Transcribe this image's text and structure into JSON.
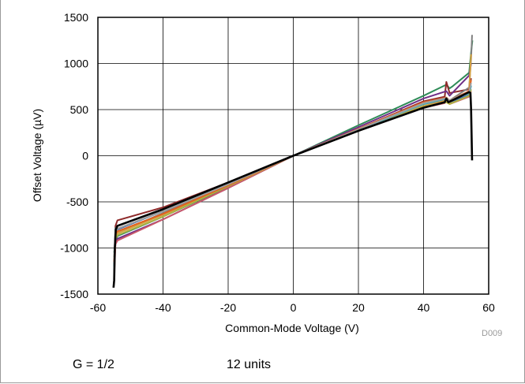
{
  "chart_data": {
    "type": "line",
    "title": "",
    "xlabel": "Common-Mode Voltage (V)",
    "ylabel": "Offset Voltage (µV)",
    "xlim": [
      -60,
      60
    ],
    "ylim": [
      -1500,
      1500
    ],
    "xticks": [
      -60,
      -40,
      -20,
      0,
      20,
      40,
      60
    ],
    "yticks": [
      -1500,
      -1000,
      -500,
      0,
      500,
      1000,
      1500
    ],
    "grid": true,
    "legend": "none",
    "series": [
      {
        "color": "#2e8b57",
        "width": 2,
        "points": [
          [
            -55,
            -1050
          ],
          [
            -54.6,
            -930
          ],
          [
            -54,
            -870
          ],
          [
            -40,
            -660
          ],
          [
            -20,
            -340
          ],
          [
            0,
            0
          ],
          [
            20,
            330
          ],
          [
            40,
            650
          ],
          [
            47,
            770
          ],
          [
            48,
            730
          ],
          [
            49,
            755
          ],
          [
            54,
            900
          ],
          [
            54.6,
            1120
          ],
          [
            55,
            1250
          ]
        ]
      },
      {
        "color": "#8e2a2a",
        "width": 2,
        "points": [
          [
            -55,
            -1180
          ],
          [
            -54.6,
            -760
          ],
          [
            -54,
            -700
          ],
          [
            -40,
            -560
          ],
          [
            -20,
            -290
          ],
          [
            0,
            0
          ],
          [
            20,
            290
          ],
          [
            40,
            590
          ],
          [
            46.5,
            640
          ],
          [
            47,
            800
          ],
          [
            48,
            680
          ],
          [
            54,
            720
          ],
          [
            54.6,
            840
          ]
        ]
      },
      {
        "color": "#6f2f86",
        "width": 2,
        "points": [
          [
            -55,
            -1200
          ],
          [
            -54.6,
            -950
          ],
          [
            -54,
            -900
          ],
          [
            -40,
            -690
          ],
          [
            -20,
            -350
          ],
          [
            0,
            0
          ],
          [
            20,
            310
          ],
          [
            40,
            620
          ],
          [
            47,
            700
          ],
          [
            48,
            650
          ],
          [
            54,
            870
          ],
          [
            54.6,
            1000
          ]
        ]
      },
      {
        "color": "#c95a6a",
        "width": 2,
        "points": [
          [
            -55,
            -1300
          ],
          [
            -54.6,
            -960
          ],
          [
            -54,
            -920
          ],
          [
            -40,
            -690
          ],
          [
            -20,
            -350
          ],
          [
            0,
            0
          ],
          [
            20,
            270
          ],
          [
            40,
            520
          ],
          [
            46.5,
            570
          ],
          [
            47,
            610
          ],
          [
            48,
            560
          ],
          [
            54,
            640
          ],
          [
            54.6,
            700
          ]
        ]
      },
      {
        "color": "#808080",
        "width": 2,
        "points": [
          [
            -55,
            -1200
          ],
          [
            -54.6,
            -880
          ],
          [
            -54,
            -840
          ],
          [
            -40,
            -620
          ],
          [
            -20,
            -320
          ],
          [
            0,
            0
          ],
          [
            20,
            290
          ],
          [
            40,
            560
          ],
          [
            47,
            620
          ],
          [
            48,
            600
          ],
          [
            54,
            740
          ],
          [
            54.6,
            1050
          ],
          [
            54.9,
            1310
          ]
        ]
      },
      {
        "color": "#3a73b8",
        "width": 2,
        "points": [
          [
            -55,
            -1250
          ],
          [
            -54.6,
            -830
          ],
          [
            -54,
            -800
          ],
          [
            -40,
            -600
          ],
          [
            -20,
            -310
          ],
          [
            0,
            0
          ],
          [
            20,
            280
          ],
          [
            40,
            560
          ],
          [
            47,
            610
          ],
          [
            48,
            580
          ],
          [
            54,
            660
          ],
          [
            54.6,
            760
          ]
        ]
      },
      {
        "color": "#d6a040",
        "width": 2,
        "points": [
          [
            -55,
            -1280
          ],
          [
            -54.6,
            -870
          ],
          [
            -54,
            -840
          ],
          [
            -40,
            -640
          ],
          [
            -20,
            -330
          ],
          [
            0,
            0
          ],
          [
            20,
            280
          ],
          [
            40,
            540
          ],
          [
            47,
            600
          ],
          [
            48,
            580
          ],
          [
            54,
            700
          ],
          [
            54.6,
            1100
          ]
        ]
      },
      {
        "color": "#b0b040",
        "width": 2,
        "points": [
          [
            -55,
            -1100
          ],
          [
            -54.6,
            -900
          ],
          [
            -54,
            -860
          ],
          [
            -40,
            -660
          ],
          [
            -20,
            -330
          ],
          [
            0,
            0
          ],
          [
            20,
            270
          ],
          [
            40,
            530
          ],
          [
            47,
            580
          ],
          [
            48,
            560
          ],
          [
            54,
            650
          ],
          [
            54.6,
            720
          ]
        ]
      },
      {
        "color": "#40b0b8",
        "width": 2,
        "points": [
          [
            -55,
            -1200
          ],
          [
            -54.6,
            -790
          ],
          [
            -54,
            -760
          ],
          [
            -40,
            -580
          ],
          [
            -20,
            -300
          ],
          [
            0,
            0
          ],
          [
            20,
            280
          ],
          [
            40,
            560
          ],
          [
            47,
            620
          ],
          [
            48,
            600
          ],
          [
            54,
            680
          ],
          [
            54.6,
            760
          ]
        ]
      },
      {
        "color": "#e06020",
        "width": 2,
        "points": [
          [
            -55,
            -1150
          ],
          [
            -54.6,
            -850
          ],
          [
            -54,
            -820
          ],
          [
            -40,
            -630
          ],
          [
            -20,
            -320
          ],
          [
            0,
            0
          ],
          [
            20,
            290
          ],
          [
            40,
            580
          ],
          [
            47,
            630
          ],
          [
            48,
            600
          ],
          [
            54,
            700
          ],
          [
            54.6,
            820
          ]
        ]
      },
      {
        "color": "#a0a0a0",
        "width": 2,
        "points": [
          [
            -55,
            -1100
          ],
          [
            -54.6,
            -820
          ],
          [
            -54,
            -790
          ],
          [
            -40,
            -600
          ],
          [
            -20,
            -310
          ],
          [
            0,
            0
          ],
          [
            20,
            285
          ],
          [
            40,
            570
          ],
          [
            47,
            625
          ],
          [
            48,
            600
          ],
          [
            54,
            690
          ],
          [
            54.6,
            790
          ]
        ]
      },
      {
        "color": "#000000",
        "width": 2.6,
        "points": [
          [
            -55.2,
            -1430
          ],
          [
            -55,
            -1350
          ],
          [
            -54.8,
            -1000
          ],
          [
            -54.5,
            -800
          ],
          [
            -54,
            -760
          ],
          [
            -40,
            -580
          ],
          [
            -20,
            -290
          ],
          [
            0,
            0
          ],
          [
            20,
            270
          ],
          [
            40,
            520
          ],
          [
            46.5,
            580
          ],
          [
            47,
            620
          ],
          [
            47.6,
            580
          ],
          [
            50,
            620
          ],
          [
            54,
            690
          ],
          [
            54.4,
            680
          ],
          [
            54.6,
            500
          ],
          [
            54.9,
            -50
          ]
        ]
      }
    ]
  },
  "code_label": "D009",
  "caption": {
    "gain": "G = 1/2",
    "units": "12 units"
  }
}
